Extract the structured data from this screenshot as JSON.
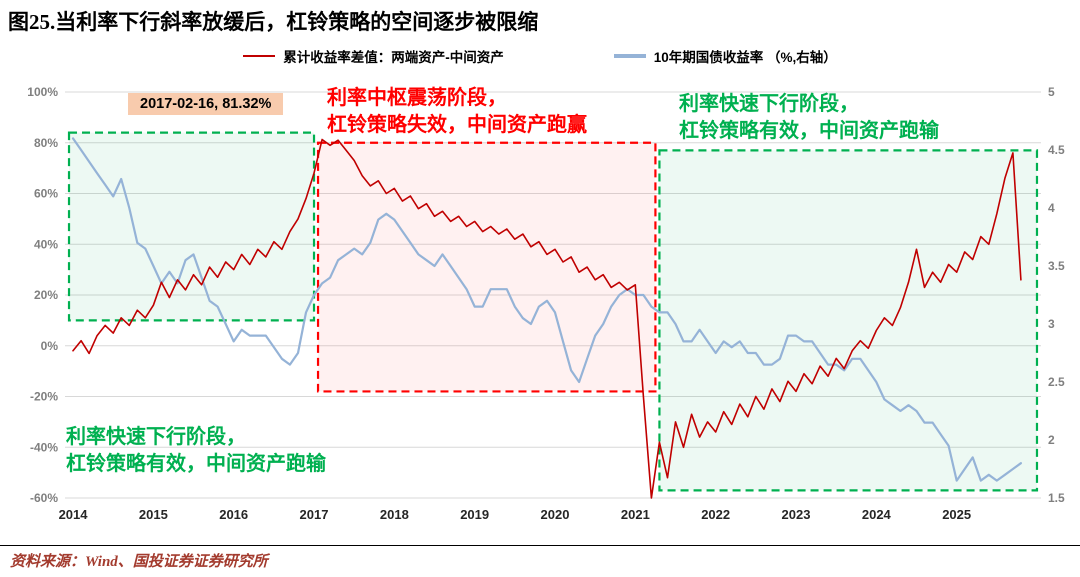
{
  "page": {
    "title": "图25.当利率下行斜率放缓后，杠铃策略的空间逐步被限缩",
    "source": "资料来源：Wind、国投证券证券研究所"
  },
  "annotations": {
    "peak_label": "2017-02-16, 81.32%",
    "mid": {
      "line1": "利率中枢震荡阶段，",
      "line2": "杠铃策略失效，中间资产跑赢",
      "color": "#FF0000"
    },
    "top_right": {
      "line1": "利率快速下行阶段，",
      "line2": "杠铃策略有效，中间资产跑输",
      "color": "#00B050"
    },
    "bottom_left": {
      "line1": "利率快速下行阶段，",
      "line2": "杠铃策略有效，中间资产跑输",
      "color": "#00B050"
    }
  },
  "chart_data": {
    "type": "line",
    "x_domain": [
      2013.9,
      2026.05
    ],
    "x_ticks": [
      {
        "value": 2014,
        "label": "2014"
      },
      {
        "value": 2015,
        "label": "2015"
      },
      {
        "value": 2016,
        "label": "2016"
      },
      {
        "value": 2017,
        "label": "2017"
      },
      {
        "value": 2018,
        "label": "2018"
      },
      {
        "value": 2019,
        "label": "2019"
      },
      {
        "value": 2020,
        "label": "2020"
      },
      {
        "value": 2021,
        "label": "2021"
      },
      {
        "value": 2022,
        "label": "2022"
      },
      {
        "value": 2023,
        "label": "2023"
      },
      {
        "value": 2024,
        "label": "2024"
      },
      {
        "value": 2025,
        "label": "2025"
      }
    ],
    "left_axis": {
      "min": -60,
      "max": 100,
      "ticks": [
        {
          "value": 100,
          "label": "100%"
        },
        {
          "value": 80,
          "label": "80%"
        },
        {
          "value": 60,
          "label": "60%"
        },
        {
          "value": 40,
          "label": "40%"
        },
        {
          "value": 20,
          "label": "20%"
        },
        {
          "value": 0,
          "label": "0%"
        },
        {
          "value": -20,
          "label": "-20%"
        },
        {
          "value": -40,
          "label": "-40%"
        },
        {
          "value": -60,
          "label": "-60%"
        }
      ]
    },
    "right_axis": {
      "min": 1.5,
      "max": 5,
      "ticks": [
        {
          "value": 5,
          "label": "5"
        },
        {
          "value": 4.5,
          "label": "4.5"
        },
        {
          "value": 4,
          "label": "4"
        },
        {
          "value": 3.5,
          "label": "3.5"
        },
        {
          "value": 3,
          "label": "3"
        },
        {
          "value": 2.5,
          "label": "2.5"
        },
        {
          "value": 2,
          "label": "2"
        },
        {
          "value": 1.5,
          "label": "1.5"
        }
      ]
    },
    "regions": [
      {
        "name": "left-green-region",
        "x": [
          2013.95,
          2017.0
        ],
        "y": [
          84,
          10
        ],
        "stroke": "#00B050",
        "fill": "rgba(0,176,80,0.07)"
      },
      {
        "name": "mid-red-region",
        "x": [
          2017.05,
          2021.25
        ],
        "y": [
          80,
          -18
        ],
        "stroke": "#FF0000",
        "fill": "rgba(255,80,80,0.08)"
      },
      {
        "name": "right-green-region",
        "x": [
          2021.3,
          2026.0
        ],
        "y": [
          77,
          -57
        ],
        "stroke": "#00B050",
        "fill": "rgba(0,176,80,0.07)"
      }
    ],
    "series": [
      {
        "name": "累计收益率差值：两端资产-中间资产",
        "axis": "left",
        "color": "#C00000",
        "width": 1.6,
        "x_start": 2014.0,
        "x_step": 0.1,
        "values": [
          -2,
          2,
          -3,
          4,
          8,
          5,
          11,
          8,
          14,
          11,
          16,
          25,
          19,
          26,
          22,
          28,
          24,
          31,
          27,
          33,
          30,
          36,
          32,
          38,
          35,
          41,
          38,
          45,
          50,
          58,
          68,
          81.3,
          79,
          81,
          77,
          73,
          67,
          63,
          65,
          60,
          62,
          57,
          59,
          54,
          56,
          51,
          53,
          49,
          51,
          47,
          49,
          45,
          47,
          44,
          46,
          42,
          44,
          39,
          41,
          36,
          38,
          33,
          35,
          29,
          31,
          26,
          28,
          23,
          25,
          22,
          24,
          -20,
          -60,
          -38,
          -52,
          -30,
          -40,
          -27,
          -36,
          -30,
          -34,
          -26,
          -31,
          -23,
          -28,
          -20,
          -25,
          -17,
          -22,
          -14,
          -18,
          -11,
          -15,
          -8,
          -12,
          -5,
          -9,
          -2,
          2,
          -1,
          6,
          11,
          8,
          15,
          25,
          38,
          23,
          29,
          25,
          32,
          29,
          37,
          34,
          43,
          40,
          52,
          66,
          76,
          26
        ]
      },
      {
        "name": "10年期国债收益率 （%,右轴）",
        "axis": "right",
        "color": "#95B3D7",
        "width": 2.2,
        "x_start": 2014.0,
        "x_step": 0.1,
        "values": [
          4.6,
          4.5,
          4.4,
          4.3,
          4.2,
          4.1,
          4.25,
          4.0,
          3.7,
          3.65,
          3.5,
          3.35,
          3.45,
          3.35,
          3.55,
          3.6,
          3.4,
          3.2,
          3.15,
          3.0,
          2.85,
          2.95,
          2.9,
          2.9,
          2.9,
          2.8,
          2.7,
          2.65,
          2.75,
          3.1,
          3.25,
          3.35,
          3.4,
          3.55,
          3.6,
          3.65,
          3.6,
          3.7,
          3.9,
          3.95,
          3.9,
          3.8,
          3.7,
          3.6,
          3.55,
          3.5,
          3.6,
          3.5,
          3.4,
          3.3,
          3.15,
          3.15,
          3.3,
          3.3,
          3.3,
          3.15,
          3.05,
          3.0,
          3.15,
          3.2,
          3.1,
          2.85,
          2.6,
          2.5,
          2.7,
          2.9,
          3.0,
          3.15,
          3.25,
          3.3,
          3.25,
          3.25,
          3.15,
          3.1,
          3.1,
          3.0,
          2.85,
          2.85,
          2.95,
          2.85,
          2.75,
          2.85,
          2.8,
          2.85,
          2.75,
          2.75,
          2.65,
          2.65,
          2.7,
          2.9,
          2.9,
          2.85,
          2.85,
          2.75,
          2.65,
          2.65,
          2.6,
          2.7,
          2.7,
          2.6,
          2.5,
          2.35,
          2.3,
          2.25,
          2.3,
          2.25,
          2.15,
          2.15,
          2.05,
          1.95,
          1.65,
          1.75,
          1.85,
          1.65,
          1.7,
          1.65,
          1.7,
          1.75,
          1.8
        ]
      }
    ]
  }
}
